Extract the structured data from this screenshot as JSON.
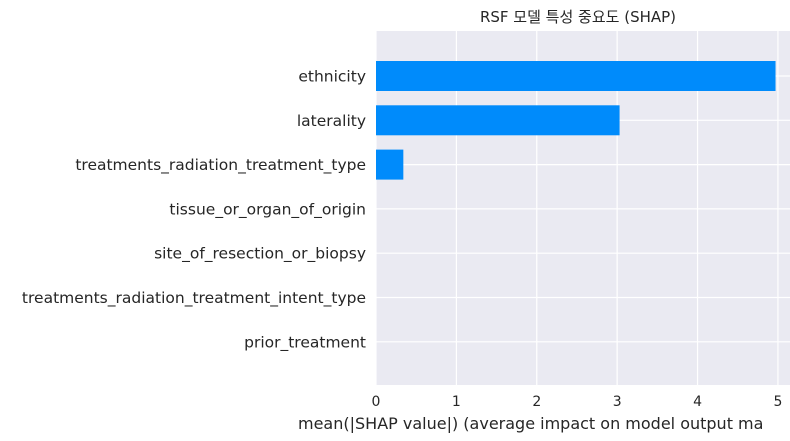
{
  "chart_data": {
    "type": "bar",
    "orientation": "horizontal",
    "title": "RSF 모델 특성 중요도 (SHAP)",
    "xlabel": "mean(|SHAP value|) (average impact on model output ma",
    "ylabel": "",
    "categories": [
      "ethnicity",
      "laterality",
      "treatments_radiation_treatment_type",
      "tissue_or_organ_of_origin",
      "site_of_resection_or_biopsy",
      "treatments_radiation_treatment_intent_type",
      "prior_treatment"
    ],
    "values": [
      4.97,
      3.03,
      0.34,
      0,
      0,
      0,
      0
    ],
    "xlim": [
      0,
      5.15
    ],
    "xticks": [
      "0",
      "1",
      "2",
      "3",
      "4",
      "5"
    ],
    "grid": true,
    "colors": {
      "bar": "#008bfb",
      "plot_bg": "#eaeaf2",
      "grid": "#ffffff"
    }
  }
}
